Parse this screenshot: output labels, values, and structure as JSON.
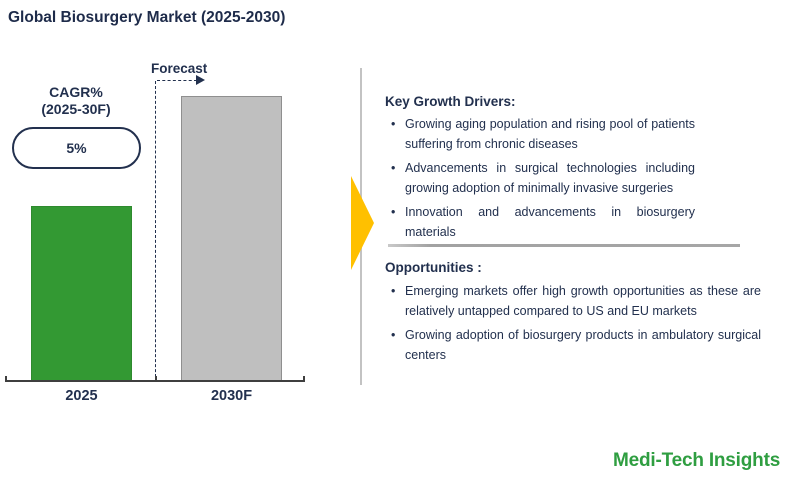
{
  "title": "Global Biosurgery Market (2025-2030)",
  "chart_data": {
    "type": "bar",
    "title": "Global Biosurgery Market (2025-2030)",
    "categories": [
      "2025",
      "2030F"
    ],
    "values": [
      61.5,
      100
    ],
    "value_labels_shown": false,
    "bar_colors": [
      "#339933",
      "#BFBFBF"
    ],
    "forecast_label": "Forecast",
    "cagr": {
      "label_line1": "CAGR%",
      "label_line2": "(2025-30F)",
      "value": "5%"
    },
    "xlabel": "",
    "ylabel": "",
    "grid": false,
    "legend": "none"
  },
  "panel": {
    "drivers": {
      "heading": "Key Growth Drivers:",
      "bullets": [
        "Growing aging population and rising pool of patients suffering from chronic diseases",
        "Advancements in surgical technologies including growing adoption of minimally invasive surgeries",
        "Innovation and advancements in biosurgery materials"
      ]
    },
    "opportunities": {
      "heading": "Opportunities :",
      "bullets": [
        "Emerging markets offer high growth opportunities as these are relatively untapped compared to US and EU markets",
        "Growing adoption of biosurgery products in ambulatory surgical centers"
      ]
    }
  },
  "logo": "Medi-Tech Insights",
  "colors": {
    "navy_text": "#22304E",
    "green_bar": "#339933",
    "gray_bar": "#BFBFBF",
    "accent_yellow": "#FFC000",
    "logo_green": "#2F9E41",
    "divider_gray": "#A6A6A6",
    "axis_gray": "#3F3F3F"
  }
}
